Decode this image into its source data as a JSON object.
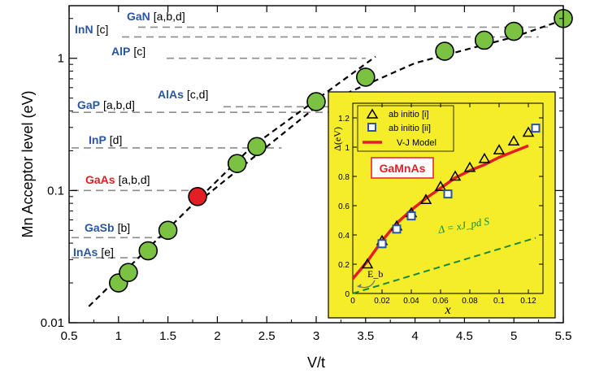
{
  "chart_data": [
    {
      "type": "scatter",
      "xlabel": "V/t",
      "ylabel": "Mn Acceptor level (eV)",
      "xscale": "linear",
      "yscale": "log",
      "xlim": [
        0.5,
        5.5
      ],
      "ylim": [
        0.01,
        2.5
      ],
      "x_ticks": [
        "0.5",
        "1",
        "1.5",
        "2",
        "2.5",
        "3",
        "3.5",
        "4",
        "4.5",
        "5",
        "5.5"
      ],
      "y_ticks": [
        "0.01",
        "0.1",
        "1"
      ],
      "series": [
        {
          "points": [
            {
              "x": 1.0,
              "y": 0.02
            },
            {
              "x": 1.1,
              "y": 0.024
            },
            {
              "x": 1.3,
              "y": 0.035
            },
            {
              "x": 1.5,
              "y": 0.05
            },
            {
              "x": 1.8,
              "y": 0.09,
              "highlight": true
            },
            {
              "x": 2.2,
              "y": 0.16
            },
            {
              "x": 2.4,
              "y": 0.215
            },
            {
              "x": 3.0,
              "y": 0.47
            },
            {
              "x": 3.5,
              "y": 0.72
            },
            {
              "x": 4.3,
              "y": 1.13
            },
            {
              "x": 4.7,
              "y": 1.37
            },
            {
              "x": 5.0,
              "y": 1.6
            },
            {
              "x": 5.5,
              "y": 2.0
            }
          ],
          "color": "#7cc242",
          "highlight_color": "#e31e24"
        }
      ],
      "fit_lines": [
        {
          "points": [
            [
              0.7,
              0.0133
            ],
            [
              2.35,
              0.215
            ],
            [
              3.6,
              1.03
            ]
          ]
        },
        {
          "points": [
            [
              1.8,
              0.081
            ],
            [
              3.0,
              0.43
            ],
            [
              4.0,
              0.92
            ],
            [
              5.0,
              1.45
            ],
            [
              5.5,
              1.95
            ]
          ]
        }
      ],
      "reference_levels": [
        {
          "material": "GaN",
          "refs": "[a,b,d]",
          "y": 1.72,
          "color": "#2a55a0"
        },
        {
          "material": "InN",
          "refs": "[c]",
          "y": 1.45,
          "color": "#2a55a0"
        },
        {
          "material": "AlP",
          "refs": "[c]",
          "y": 1.0,
          "color": "#2a55a0"
        },
        {
          "material": "AlAs",
          "refs": "[c,d]",
          "y": 0.43,
          "color": "#2a55a0"
        },
        {
          "material": "GaP",
          "refs": "[a,b,d]",
          "y": 0.39,
          "color": "#2a55a0"
        },
        {
          "material": "InP",
          "refs": "[d]",
          "y": 0.21,
          "color": "#2a55a0"
        },
        {
          "material": "GaAs",
          "refs": "[a,b,d]",
          "y": 0.1,
          "color": "#e31e24"
        },
        {
          "material": "GaSb",
          "refs": "[b]",
          "y": 0.044,
          "color": "#2a55a0"
        },
        {
          "material": "InAs",
          "refs": "[e]",
          "y": 0.031,
          "color": "#2a55a0"
        }
      ]
    },
    {
      "type": "line",
      "inset": true,
      "xlabel": "x",
      "ylabel": "Δ(eV)",
      "xlim": [
        0,
        0.13
      ],
      "ylim": [
        0,
        1.3
      ],
      "x_ticks": [
        "0",
        "0.02",
        "0.04",
        "0.06",
        "0.08",
        "0.1",
        "0.12"
      ],
      "y_ticks": [
        "0",
        "0.2",
        "0.4",
        "0.6",
        "0.8",
        "1",
        "1.2"
      ],
      "label_box": "GaMnAs",
      "equation": "Δ = xJ_pd S",
      "annotation": "E_b",
      "legend": [
        "ab initio [i]",
        "ab initio [ii]",
        "V-J Model"
      ],
      "background": "#f5ec2a",
      "series": [
        {
          "name": "ab initio [i]",
          "marker": "triangle",
          "points": [
            [
              0.01,
              0.2
            ],
            [
              0.02,
              0.36
            ],
            [
              0.03,
              0.46
            ],
            [
              0.04,
              0.55
            ],
            [
              0.05,
              0.64
            ],
            [
              0.06,
              0.73
            ],
            [
              0.07,
              0.8
            ],
            [
              0.08,
              0.86
            ],
            [
              0.09,
              0.92
            ],
            [
              0.1,
              0.98
            ],
            [
              0.11,
              1.04
            ],
            [
              0.12,
              1.1
            ]
          ]
        },
        {
          "name": "ab initio [ii]",
          "marker": "square",
          "color": "#2a55a0",
          "points": [
            [
              0.02,
              0.34
            ],
            [
              0.03,
              0.44
            ],
            [
              0.04,
              0.53
            ],
            [
              0.065,
              0.68
            ],
            [
              0.125,
              1.13
            ]
          ]
        },
        {
          "name": "V-J Model",
          "color": "#e31e24",
          "points": [
            [
              0.0,
              0.1
            ],
            [
              0.01,
              0.22
            ],
            [
              0.02,
              0.36
            ],
            [
              0.03,
              0.48
            ],
            [
              0.04,
              0.57
            ],
            [
              0.05,
              0.65
            ],
            [
              0.06,
              0.72
            ],
            [
              0.07,
              0.79
            ],
            [
              0.08,
              0.84
            ],
            [
              0.09,
              0.88
            ],
            [
              0.1,
              0.93
            ],
            [
              0.11,
              0.97
            ],
            [
              0.12,
              1.01
            ]
          ]
        },
        {
          "name": "Δ = xJ_pd S",
          "color": "#1a8a3a",
          "dashed": true,
          "points": [
            [
              0.0,
              0.0
            ],
            [
              0.125,
              0.38
            ]
          ]
        }
      ]
    }
  ]
}
